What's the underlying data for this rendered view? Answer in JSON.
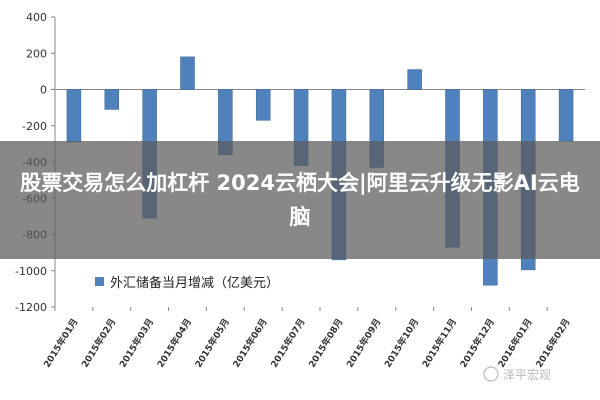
{
  "headline": "股票交易怎么加杠杆 2024云栖大会|阿里云升级无影AI云电脑",
  "watermark": "泽平宏观",
  "colors": {
    "bar": "#4f81bd",
    "bar_edge": "#3a6496",
    "axis": "#888888",
    "overlay": "#5a5a5a"
  },
  "chart_data": {
    "type": "bar",
    "categories": [
      "2015年01月",
      "2015年02月",
      "2015年03月",
      "2015年04月",
      "2015年05月",
      "2015年06月",
      "2015年07月",
      "2015年08月",
      "2015年09月",
      "2015年10月",
      "2015年11月",
      "2015年12月",
      "2016年01月",
      "2016年02月"
    ],
    "series": [
      {
        "name": "外汇储备当月增减（亿美元）",
        "values": [
          -290,
          -110,
          -710,
          180,
          -360,
          -170,
          -420,
          -940,
          -430,
          110,
          -870,
          -1080,
          -995,
          -285
        ]
      }
    ],
    "title": "",
    "xlabel": "",
    "ylabel": "",
    "ylim": [
      -1200,
      400
    ],
    "yticks": [
      400,
      200,
      0,
      -200,
      -400,
      -600,
      -800,
      -1000,
      -1200
    ],
    "grid": false,
    "legend": "bottom-left"
  }
}
